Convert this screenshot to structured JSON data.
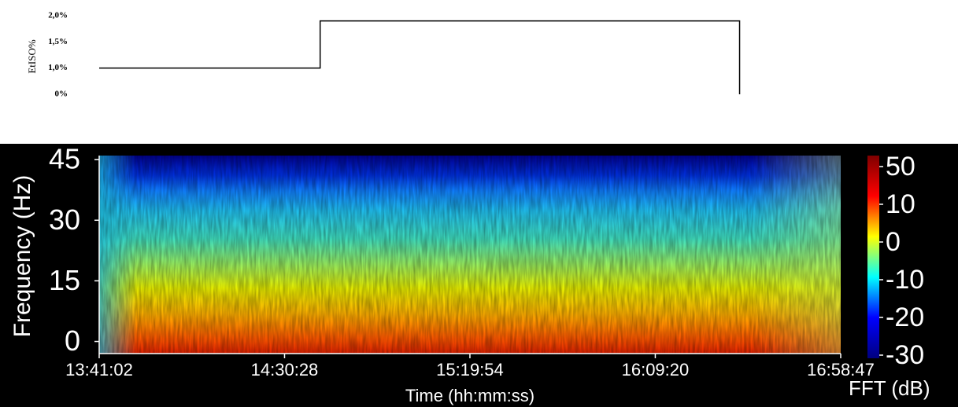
{
  "chart_data": [
    {
      "type": "line",
      "step": true,
      "ylabel": "EtISO%",
      "color": "#000000",
      "x": [
        0,
        59,
        59,
        171,
        171
      ],
      "values": [
        1.0,
        1.0,
        1.9,
        1.9,
        0
      ],
      "xlim": [
        0,
        198
      ],
      "yticks": [
        {
          "value": 0,
          "label": "0%"
        },
        {
          "value": 1.0,
          "label": "1,0%"
        },
        {
          "value": 1.5,
          "label": "1,5%"
        },
        {
          "value": 2.0,
          "label": "2,0%"
        }
      ]
    },
    {
      "type": "heatmap",
      "xlabel": "Time (hh:mm:ss)",
      "ylabel": "Frequency (Hz)",
      "colorbar_label": "FFT (dB)",
      "xlim": [
        49262,
        61127
      ],
      "xticks": [
        {
          "value": 49262,
          "label": "13:41:02"
        },
        {
          "value": 52228,
          "label": "14:30:28"
        },
        {
          "value": 55194,
          "label": "15:19:54"
        },
        {
          "value": 58160,
          "label": "16:09:20"
        },
        {
          "value": 61127,
          "label": "16:58:47"
        }
      ],
      "ylim": [
        -3,
        46
      ],
      "yticks": [
        0,
        15,
        30,
        45
      ],
      "colorbar_ticks": [
        -30,
        -20,
        -10,
        0,
        10,
        50
      ],
      "colormap": [
        "#00007f",
        "#0000ff",
        "#00ffff",
        "#ffff00",
        "#ff0000",
        "#7f0000"
      ]
    }
  ]
}
